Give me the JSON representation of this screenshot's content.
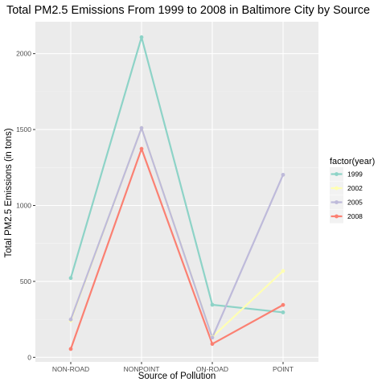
{
  "chart_data": {
    "type": "line",
    "title": "Total PM2.5 Emissions From 1999 to 2008 in Baltimore City by Source",
    "xlabel": "Source of Pollution",
    "ylabel": "Total PM2.5 Emissions (in tons)",
    "categories": [
      "NON-ROAD",
      "NONPOINT",
      "ON-ROAD",
      "POINT"
    ],
    "ylim": [
      -30,
      2210
    ],
    "yticks": [
      0,
      500,
      1000,
      1500,
      2000
    ],
    "grid": true,
    "legend": {
      "title": "factor(year)",
      "placement": "right"
    },
    "series": [
      {
        "name": "1999",
        "color": "#8dd3c7",
        "values": [
          522,
          2108,
          346,
          296
        ]
      },
      {
        "name": "2002",
        "color": "#ffffb3",
        "values": [
          241,
          1510,
          134,
          569
        ]
      },
      {
        "name": "2005",
        "color": "#bebada",
        "values": [
          249,
          1510,
          130,
          1202
        ]
      },
      {
        "name": "2008",
        "color": "#fb8072",
        "values": [
          55,
          1373,
          88,
          345
        ]
      }
    ]
  }
}
